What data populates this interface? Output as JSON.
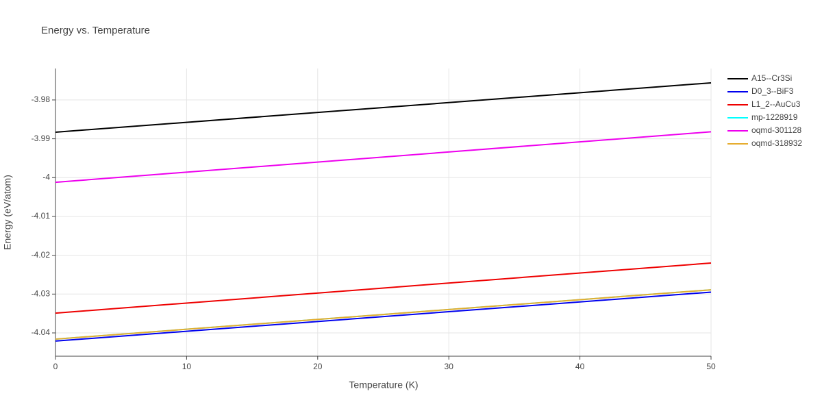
{
  "chart_data": {
    "type": "line",
    "title": "Energy vs. Temperature",
    "x_label": "Temperature (K)",
    "y_label": "Energy (eV/atom)",
    "x": [
      0,
      50
    ],
    "series": [
      {
        "name": "A15--Cr3Si",
        "color": "#000000",
        "values": [
          -3.9883,
          -3.9756
        ]
      },
      {
        "name": "D0_3--BiF3",
        "color": "#0000ee",
        "values": [
          -4.0421,
          -4.0295
        ]
      },
      {
        "name": "L1_2--AuCu3",
        "color": "#ee0000",
        "values": [
          -4.0349,
          -4.022
        ]
      },
      {
        "name": "mp-1228919",
        "color": "#00ffff",
        "values": [
          -4.0416,
          -4.0289
        ]
      },
      {
        "name": "oqmd-301128",
        "color": "#ee00ee",
        "values": [
          -4.0012,
          -3.9882
        ]
      },
      {
        "name": "oqmd-318932",
        "color": "#e6ac2e",
        "values": [
          -4.0416,
          -4.0289
        ]
      }
    ],
    "xlim": [
      0,
      50
    ],
    "xticks": [
      0,
      10,
      20,
      30,
      40,
      50
    ],
    "ylim": [
      -4.046,
      -3.9719
    ],
    "yticks": [
      -4.04,
      -4.03,
      -4.02,
      -4.01,
      -4,
      -3.99,
      -3.98
    ],
    "grid": true,
    "legend": "right"
  }
}
